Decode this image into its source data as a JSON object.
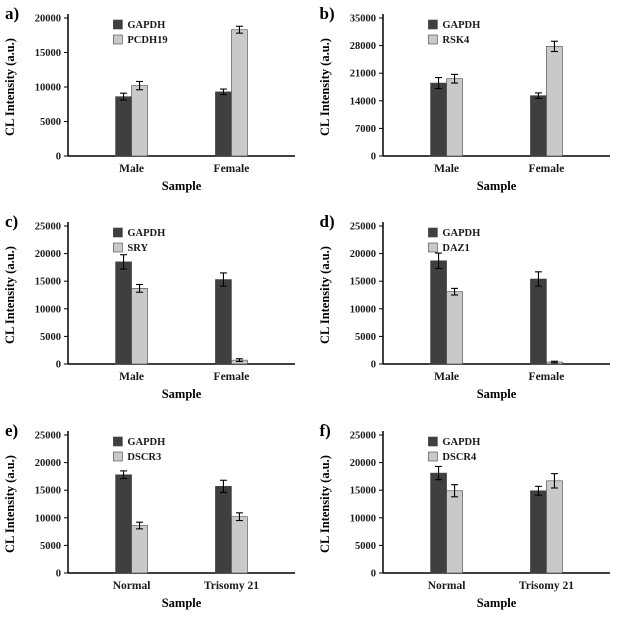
{
  "figure": {
    "panel_count": 6,
    "background": "#ffffff",
    "bar_color_dark": "#3f3f3f",
    "bar_color_light": "#c9c9c9"
  },
  "chart_data": [
    {
      "type": "bar",
      "panel_label": "a)",
      "categories": [
        "Male",
        "Female"
      ],
      "series": [
        {
          "name": "GAPDH",
          "color": "#3f3f3f",
          "values": [
            8600,
            9300
          ],
          "errors": [
            500,
            400
          ]
        },
        {
          "name": "PCDH19",
          "color": "#c9c9c9",
          "values": [
            10200,
            18300
          ],
          "errors": [
            600,
            500
          ]
        }
      ],
      "xlabel": "Sample",
      "ylabel": "CL Intensity (a.u.)",
      "ylim": [
        0,
        20000
      ],
      "ytick": 5000,
      "grid": false,
      "legend": "top-left-inside"
    },
    {
      "type": "bar",
      "panel_label": "b)",
      "categories": [
        "Male",
        "Female"
      ],
      "series": [
        {
          "name": "GAPDH",
          "color": "#3f3f3f",
          "values": [
            18500,
            15300
          ],
          "errors": [
            1400,
            700
          ]
        },
        {
          "name": "RSK4",
          "color": "#c9c9c9",
          "values": [
            19600,
            27800
          ],
          "errors": [
            1100,
            1300
          ]
        }
      ],
      "xlabel": "Sample",
      "ylabel": "CL Intensity (a.u.)",
      "ylim": [
        0,
        35000
      ],
      "ytick": 7000,
      "grid": false,
      "legend": "top-left-inside"
    },
    {
      "type": "bar",
      "panel_label": "c)",
      "categories": [
        "Male",
        "Female"
      ],
      "series": [
        {
          "name": "GAPDH",
          "color": "#3f3f3f",
          "values": [
            18500,
            15300
          ],
          "errors": [
            1300,
            1200
          ]
        },
        {
          "name": "SRY",
          "color": "#c9c9c9",
          "values": [
            13700,
            700
          ],
          "errors": [
            700,
            250
          ]
        }
      ],
      "xlabel": "Sample",
      "ylabel": "CL Intensity (a.u.)",
      "ylim": [
        0,
        25000
      ],
      "ytick": 5000,
      "grid": false,
      "legend": "top-left-inside"
    },
    {
      "type": "bar",
      "panel_label": "d)",
      "categories": [
        "Male",
        "Female"
      ],
      "series": [
        {
          "name": "GAPDH",
          "color": "#3f3f3f",
          "values": [
            18700,
            15400
          ],
          "errors": [
            1400,
            1300
          ]
        },
        {
          "name": "DAZ1",
          "color": "#c9c9c9",
          "values": [
            13100,
            350
          ],
          "errors": [
            600,
            150
          ]
        }
      ],
      "xlabel": "Sample",
      "ylabel": "CL Intensity (a.u.)",
      "ylim": [
        0,
        25000
      ],
      "ytick": 5000,
      "grid": false,
      "legend": "top-left-inside"
    },
    {
      "type": "bar",
      "panel_label": "e)",
      "categories": [
        "Normal",
        "Trisomy 21"
      ],
      "series": [
        {
          "name": "GAPDH",
          "color": "#3f3f3f",
          "values": [
            17800,
            15700
          ],
          "errors": [
            700,
            1100
          ]
        },
        {
          "name": "DSCR3",
          "color": "#c9c9c9",
          "values": [
            8600,
            10200
          ],
          "errors": [
            600,
            700
          ]
        }
      ],
      "xlabel": "Sample",
      "ylabel": "CL Intensity (a.u.)",
      "ylim": [
        0,
        25000
      ],
      "ytick": 5000,
      "grid": false,
      "legend": "top-left-inside"
    },
    {
      "type": "bar",
      "panel_label": "f)",
      "categories": [
        "Normal",
        "Trisomy 21"
      ],
      "series": [
        {
          "name": "GAPDH",
          "color": "#3f3f3f",
          "values": [
            18100,
            14900
          ],
          "errors": [
            1200,
            800
          ]
        },
        {
          "name": "DSCR4",
          "color": "#c9c9c9",
          "values": [
            14900,
            16700
          ],
          "errors": [
            1100,
            1300
          ]
        }
      ],
      "xlabel": "Sample",
      "ylabel": "CL Intensity (a.u.)",
      "ylim": [
        0,
        25000
      ],
      "ytick": 5000,
      "grid": false,
      "legend": "top-left-inside"
    }
  ]
}
